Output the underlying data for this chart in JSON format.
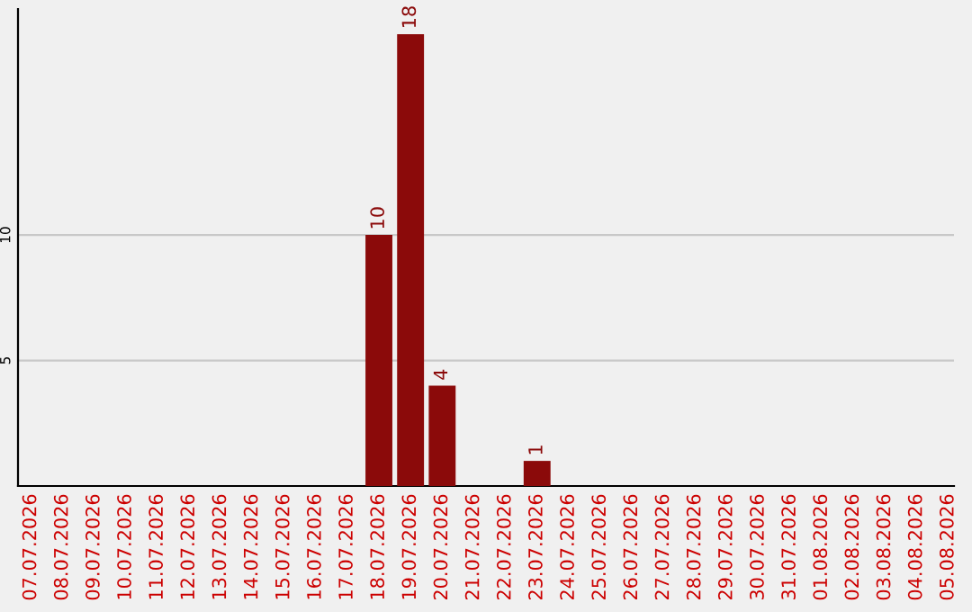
{
  "chart_data": {
    "type": "bar",
    "categories": [
      "07.07.2026",
      "08.07.2026",
      "09.07.2026",
      "10.07.2026",
      "11.07.2026",
      "12.07.2026",
      "13.07.2026",
      "14.07.2026",
      "15.07.2026",
      "16.07.2026",
      "17.07.2026",
      "18.07.2026",
      "19.07.2026",
      "20.07.2026",
      "21.07.2026",
      "22.07.2026",
      "23.07.2026",
      "24.07.2026",
      "25.07.2026",
      "26.07.2026",
      "27.07.2026",
      "28.07.2026",
      "29.07.2026",
      "30.07.2026",
      "31.07.2026",
      "01.08.2026",
      "02.08.2026",
      "03.08.2026",
      "04.08.2026",
      "05.08.2026"
    ],
    "values": [
      0,
      0,
      0,
      0,
      0,
      0,
      0,
      0,
      0,
      0,
      0,
      10,
      18,
      4,
      0,
      0,
      1,
      0,
      0,
      0,
      0,
      0,
      0,
      0,
      0,
      0,
      0,
      0,
      0,
      0
    ],
    "value_labels": [
      null,
      null,
      null,
      null,
      null,
      null,
      null,
      null,
      null,
      null,
      null,
      "10",
      "18",
      "4",
      null,
      null,
      "1",
      null,
      null,
      null,
      null,
      null,
      null,
      null,
      null,
      null,
      null,
      null,
      null,
      null
    ],
    "color": "#8b0a0a",
    "ylim": [
      0,
      19
    ],
    "yticks": [
      5,
      10
    ],
    "grid": "y"
  }
}
